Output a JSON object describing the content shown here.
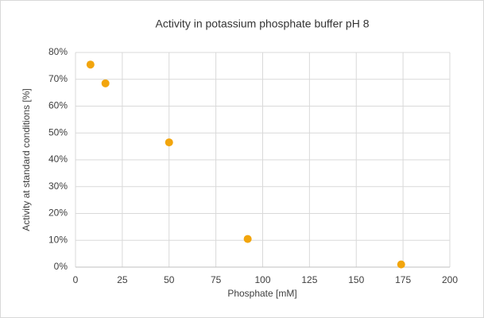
{
  "chart_data": {
    "type": "scatter",
    "title": "Activity in potassium phosphate buffer pH 8",
    "xlabel": "Phosphate [mM]",
    "ylabel": "Activity at standard conditions [%]",
    "series": [
      {
        "color": "#f2a50c",
        "x": [
          8,
          16,
          50,
          92,
          174
        ],
        "values": [
          75.5,
          68.5,
          46.5,
          10.5,
          1
        ]
      }
    ],
    "xlim": [
      0,
      200
    ],
    "xticks": [
      0,
      25,
      50,
      75,
      100,
      125,
      150,
      175,
      200
    ],
    "ylim": [
      0,
      80
    ],
    "yticks": [
      {
        "value": 0,
        "label": "0%"
      },
      {
        "value": 10,
        "label": "10%"
      },
      {
        "value": 20,
        "label": "20%"
      },
      {
        "value": 30,
        "label": "30%"
      },
      {
        "value": 40,
        "label": "40%"
      },
      {
        "value": 50,
        "label": "50%"
      },
      {
        "value": 60,
        "label": "60%"
      },
      {
        "value": 70,
        "label": "70%"
      },
      {
        "value": 80,
        "label": "80%"
      }
    ],
    "grid": true
  }
}
